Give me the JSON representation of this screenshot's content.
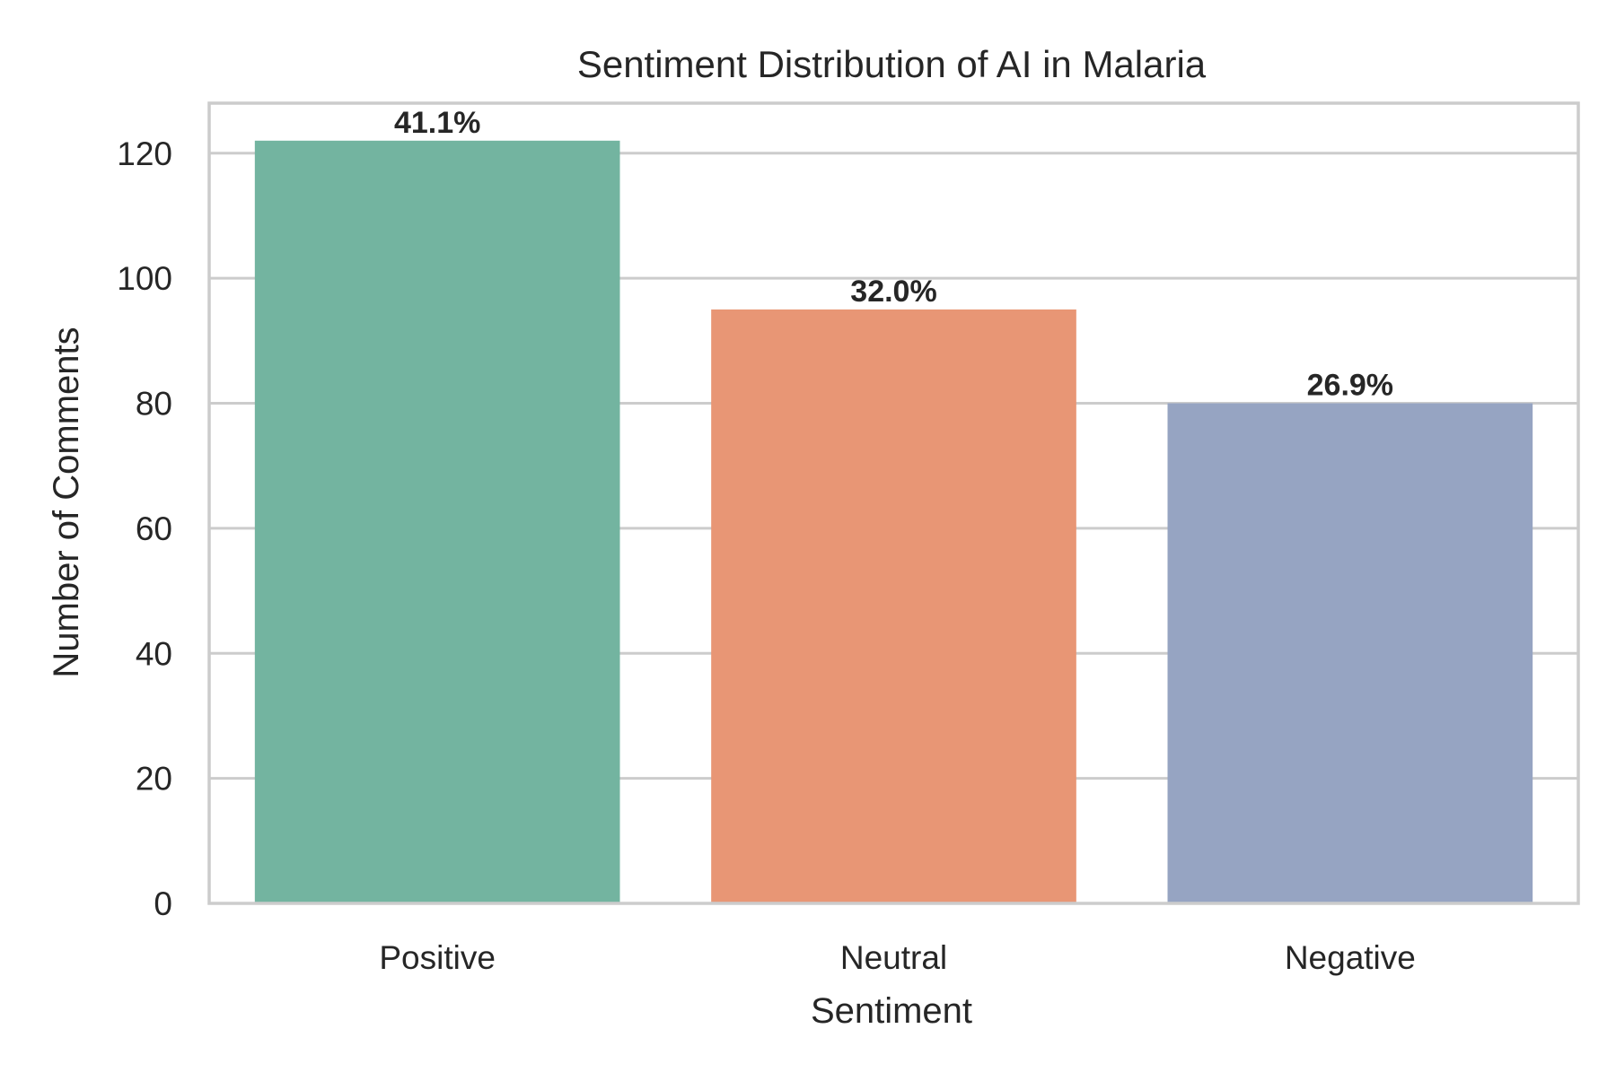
{
  "chart_data": {
    "type": "bar",
    "title": "Sentiment Distribution of AI in Malaria",
    "xlabel": "Sentiment",
    "ylabel": "Number of Comments",
    "categories": [
      "Positive",
      "Neutral",
      "Negative"
    ],
    "values": [
      122,
      95,
      80
    ],
    "data_labels": [
      "41.1%",
      "32.0%",
      "26.9%"
    ],
    "colors": [
      "#73b4a0",
      "#e89675",
      "#96a4c2"
    ],
    "ylim": [
      0,
      128
    ],
    "yticks": [
      0,
      20,
      40,
      60,
      80,
      100,
      120
    ],
    "grid": true,
    "legend": "none"
  }
}
